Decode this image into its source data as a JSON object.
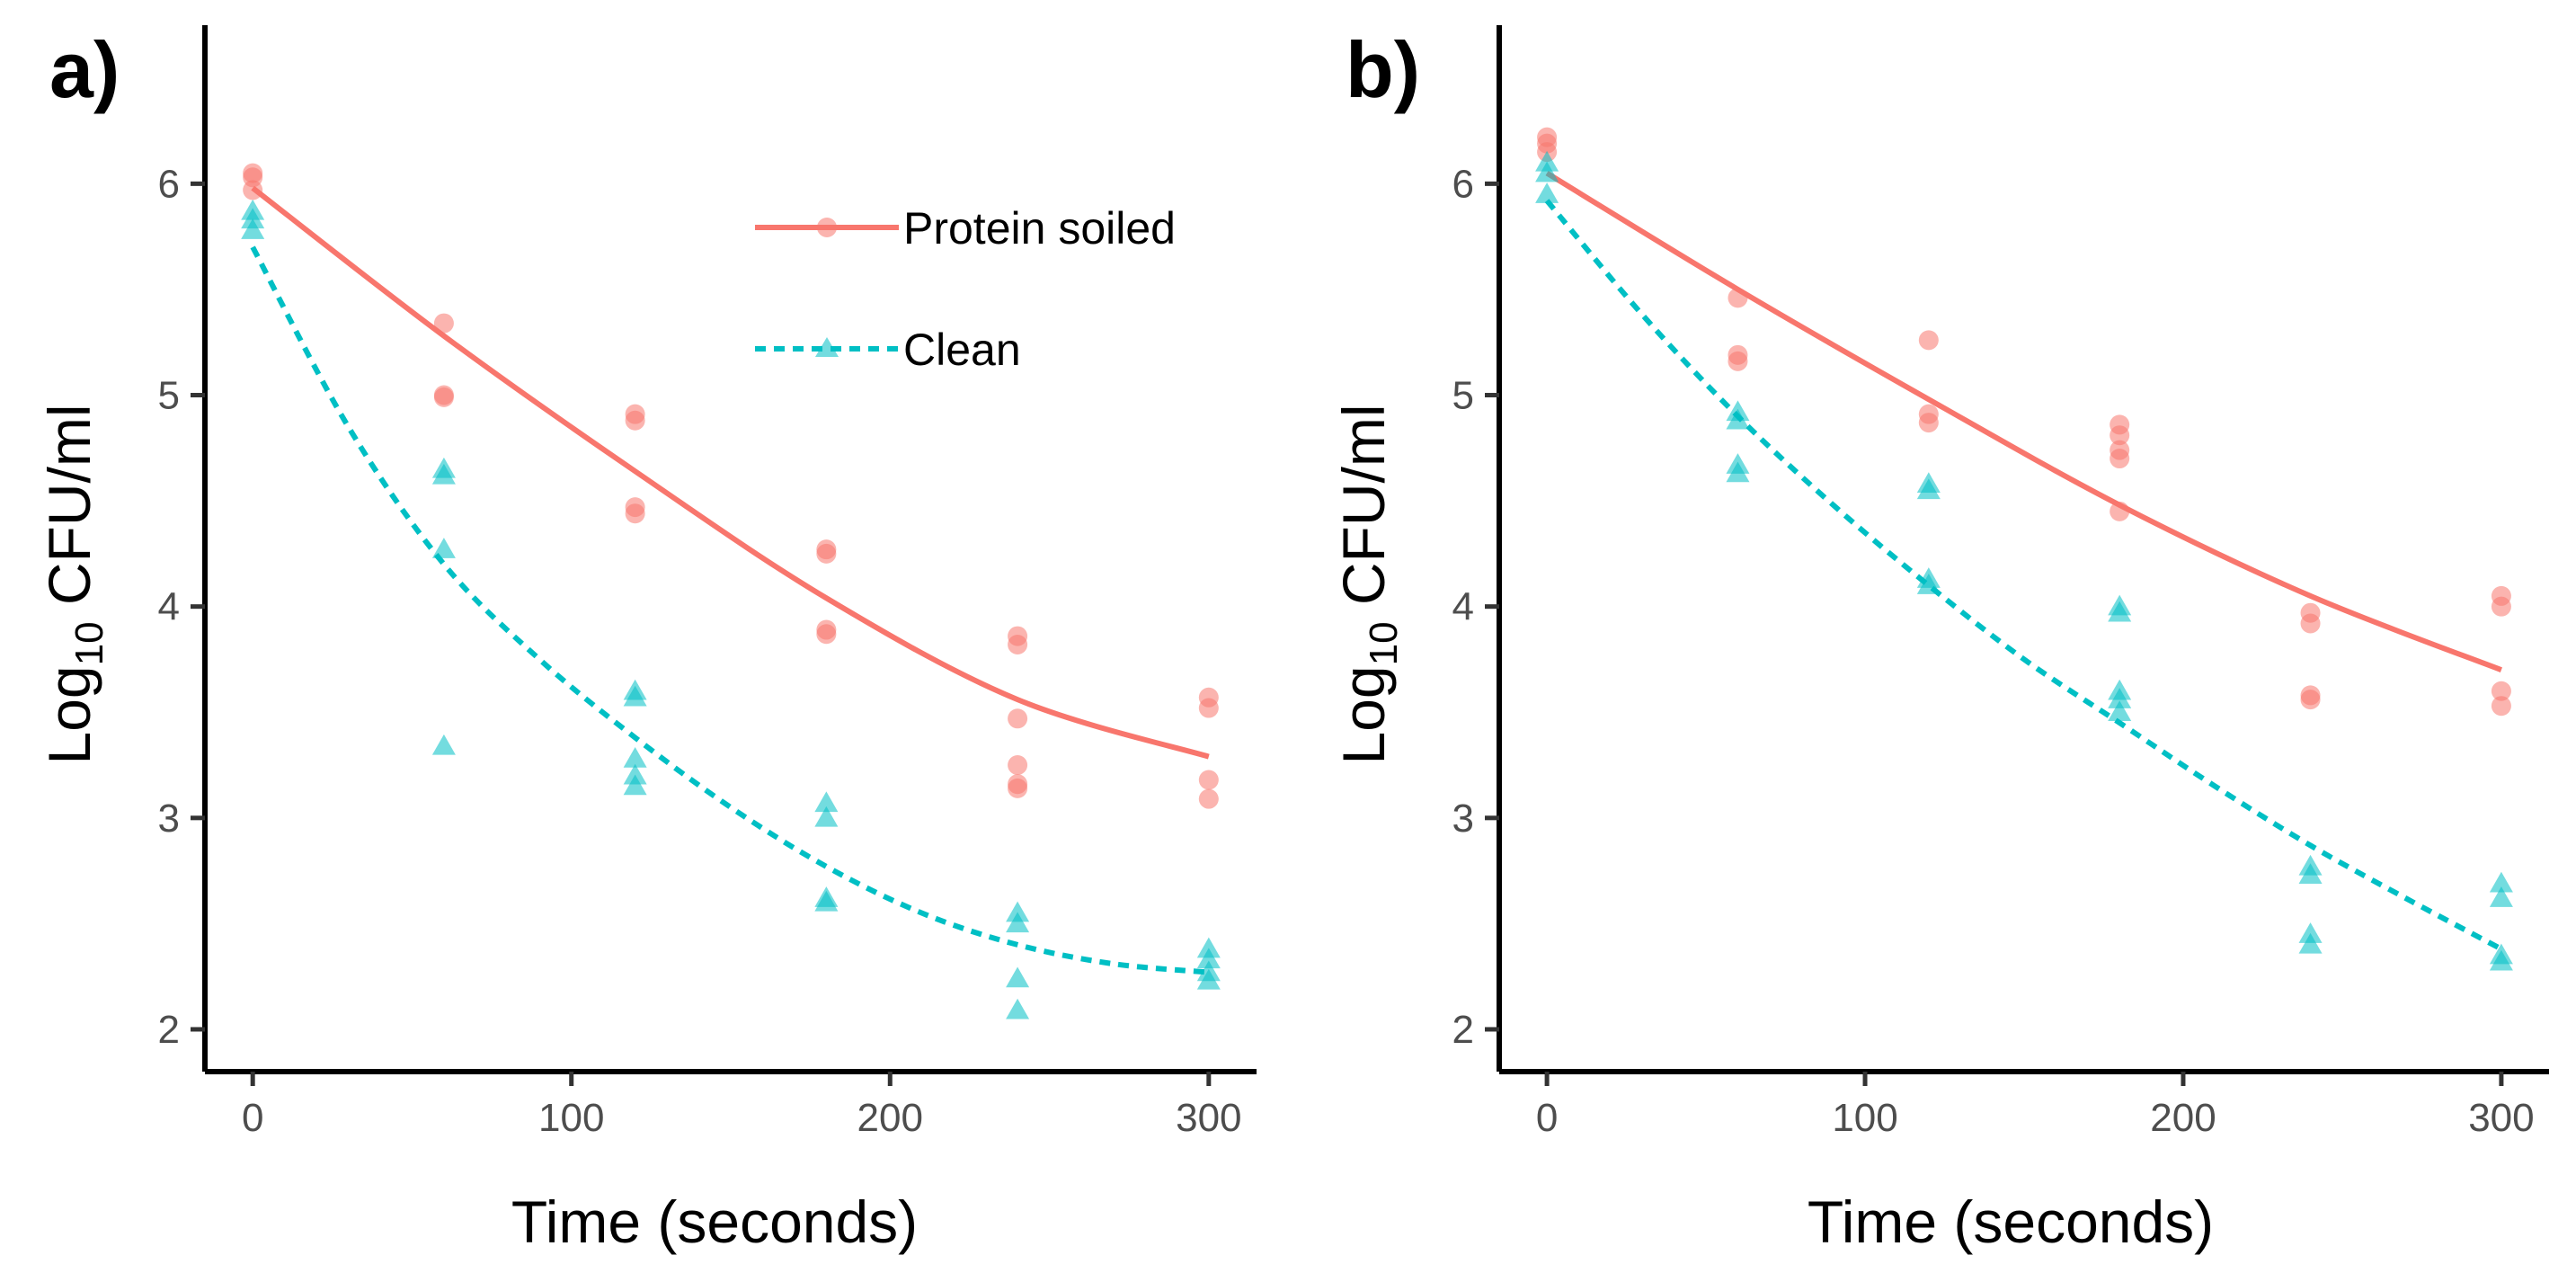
{
  "colors": {
    "protein": "#F8766D",
    "clean": "#00BFC4"
  },
  "legend": {
    "position": "top-right of panel a",
    "items": [
      {
        "name": "Protein soiled",
        "style": "solid",
        "marker": "circle",
        "color": "#F8766D"
      },
      {
        "name": "Clean",
        "style": "dashed",
        "marker": "triangle",
        "color": "#00BFC4"
      }
    ]
  },
  "chart_data": [
    {
      "type": "scatter",
      "panel": "a)",
      "xlabel": "Time (seconds)",
      "ylabel": {
        "base": "Log",
        "sub": "10",
        "rest": " CFU/ml"
      },
      "xlim": [
        -15,
        315
      ],
      "ylim": [
        1.8,
        6.75
      ],
      "xticks": [
        0,
        100,
        200,
        300
      ],
      "yticks": [
        2,
        3,
        4,
        5,
        6
      ],
      "grid": false,
      "series": [
        {
          "name": "Protein soiled",
          "marker": "circle",
          "points": [
            [
              0,
              6.05
            ],
            [
              0,
              6.03
            ],
            [
              0,
              5.97
            ],
            [
              60,
              5.34
            ],
            [
              60,
              5.0
            ],
            [
              60,
              4.99
            ],
            [
              120,
              4.91
            ],
            [
              120,
              4.88
            ],
            [
              120,
              4.47
            ],
            [
              120,
              4.44
            ],
            [
              180,
              4.27
            ],
            [
              180,
              4.25
            ],
            [
              180,
              3.89
            ],
            [
              180,
              3.87
            ],
            [
              240,
              3.86
            ],
            [
              240,
              3.82
            ],
            [
              240,
              3.47
            ],
            [
              240,
              3.25
            ],
            [
              240,
              3.16
            ],
            [
              240,
              3.14
            ],
            [
              300,
              3.57
            ],
            [
              300,
              3.52
            ],
            [
              300,
              3.18
            ],
            [
              300,
              3.09
            ]
          ],
          "fit": [
            [
              0,
              5.98
            ],
            [
              60,
              5.28
            ],
            [
              120,
              4.64
            ],
            [
              180,
              4.04
            ],
            [
              240,
              3.56
            ],
            [
              300,
              3.29
            ]
          ]
        },
        {
          "name": "Clean",
          "marker": "triangle",
          "points": [
            [
              0,
              5.87
            ],
            [
              0,
              5.83
            ],
            [
              0,
              5.78
            ],
            [
              60,
              4.65
            ],
            [
              60,
              4.62
            ],
            [
              60,
              4.27
            ],
            [
              60,
              3.34
            ],
            [
              120,
              3.6
            ],
            [
              120,
              3.57
            ],
            [
              120,
              3.28
            ],
            [
              120,
              3.2
            ],
            [
              120,
              3.15
            ],
            [
              180,
              3.07
            ],
            [
              180,
              3.0
            ],
            [
              180,
              2.62
            ],
            [
              180,
              2.6
            ],
            [
              240,
              2.55
            ],
            [
              240,
              2.5
            ],
            [
              240,
              2.24
            ],
            [
              240,
              2.09
            ],
            [
              300,
              2.38
            ],
            [
              300,
              2.33
            ],
            [
              300,
              2.27
            ],
            [
              300,
              2.23
            ]
          ],
          "fit": [
            [
              0,
              5.7
            ],
            [
              30,
              4.85
            ],
            [
              60,
              4.2
            ],
            [
              90,
              3.75
            ],
            [
              120,
              3.38
            ],
            [
              150,
              3.05
            ],
            [
              180,
              2.77
            ],
            [
              210,
              2.55
            ],
            [
              240,
              2.4
            ],
            [
              270,
              2.31
            ],
            [
              300,
              2.27
            ]
          ]
        }
      ]
    },
    {
      "type": "scatter",
      "panel": "b)",
      "xlabel": "Time (seconds)",
      "ylabel": {
        "base": "Log",
        "sub": "10",
        "rest": " CFU/ml"
      },
      "xlim": [
        -15,
        315
      ],
      "ylim": [
        1.8,
        6.75
      ],
      "xticks": [
        0,
        100,
        200,
        300
      ],
      "yticks": [
        2,
        3,
        4,
        5,
        6
      ],
      "grid": false,
      "series": [
        {
          "name": "Protein soiled",
          "marker": "circle",
          "points": [
            [
              0,
              6.22
            ],
            [
              0,
              6.19
            ],
            [
              0,
              6.15
            ],
            [
              60,
              5.46
            ],
            [
              60,
              5.19
            ],
            [
              60,
              5.16
            ],
            [
              120,
              5.26
            ],
            [
              120,
              4.91
            ],
            [
              120,
              4.87
            ],
            [
              180,
              4.86
            ],
            [
              180,
              4.81
            ],
            [
              180,
              4.74
            ],
            [
              180,
              4.7
            ],
            [
              180,
              4.45
            ],
            [
              240,
              3.97
            ],
            [
              240,
              3.92
            ],
            [
              240,
              3.58
            ],
            [
              240,
              3.56
            ],
            [
              300,
              4.05
            ],
            [
              300,
              4.0
            ],
            [
              300,
              3.6
            ],
            [
              300,
              3.53
            ]
          ],
          "fit": [
            [
              0,
              6.05
            ],
            [
              60,
              5.5
            ],
            [
              120,
              4.98
            ],
            [
              180,
              4.48
            ],
            [
              240,
              4.05
            ],
            [
              300,
              3.7
            ]
          ]
        },
        {
          "name": "Clean",
          "marker": "triangle",
          "points": [
            [
              0,
              6.1
            ],
            [
              0,
              6.05
            ],
            [
              0,
              5.95
            ],
            [
              60,
              4.92
            ],
            [
              60,
              4.88
            ],
            [
              60,
              4.67
            ],
            [
              60,
              4.63
            ],
            [
              120,
              4.58
            ],
            [
              120,
              4.55
            ],
            [
              120,
              4.13
            ],
            [
              120,
              4.1
            ],
            [
              180,
              4.0
            ],
            [
              180,
              3.97
            ],
            [
              180,
              3.6
            ],
            [
              180,
              3.56
            ],
            [
              180,
              3.5
            ],
            [
              240,
              2.77
            ],
            [
              240,
              2.73
            ],
            [
              240,
              2.45
            ],
            [
              240,
              2.4
            ],
            [
              300,
              2.69
            ],
            [
              300,
              2.62
            ],
            [
              300,
              2.35
            ],
            [
              300,
              2.32
            ]
          ],
          "fit": [
            [
              0,
              5.92
            ],
            [
              30,
              5.38
            ],
            [
              60,
              4.9
            ],
            [
              90,
              4.48
            ],
            [
              120,
              4.1
            ],
            [
              150,
              3.75
            ],
            [
              180,
              3.45
            ],
            [
              210,
              3.15
            ],
            [
              240,
              2.87
            ],
            [
              270,
              2.62
            ],
            [
              300,
              2.38
            ]
          ]
        }
      ]
    }
  ]
}
